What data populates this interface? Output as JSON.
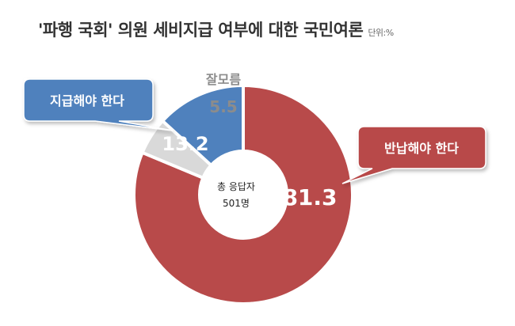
{
  "title": "'파행 국회' 의원 세비지급 여부에 대한 국민여론",
  "unit": "단위:%",
  "center_label": {
    "line1": "총 응답자",
    "line2": "501명"
  },
  "colors": {
    "red": "#B84A4A",
    "blue": "#4F81BD",
    "gray": "#D9D9D9",
    "gray_text": "#8C8C8C",
    "white": "#FFFFFF"
  },
  "chart_data": {
    "type": "pie",
    "title": "'파행 국회' 의원 세비지급 여부에 대한 국민여론",
    "unit": "%",
    "slices": [
      {
        "label": "반납해야 한다",
        "value": 81.3,
        "color": "#B84A4A"
      },
      {
        "label": "잘모름",
        "value": 5.5,
        "color": "#D9D9D9"
      },
      {
        "label": "지급해야 한다",
        "value": 13.2,
        "color": "#4F81BD"
      }
    ]
  }
}
